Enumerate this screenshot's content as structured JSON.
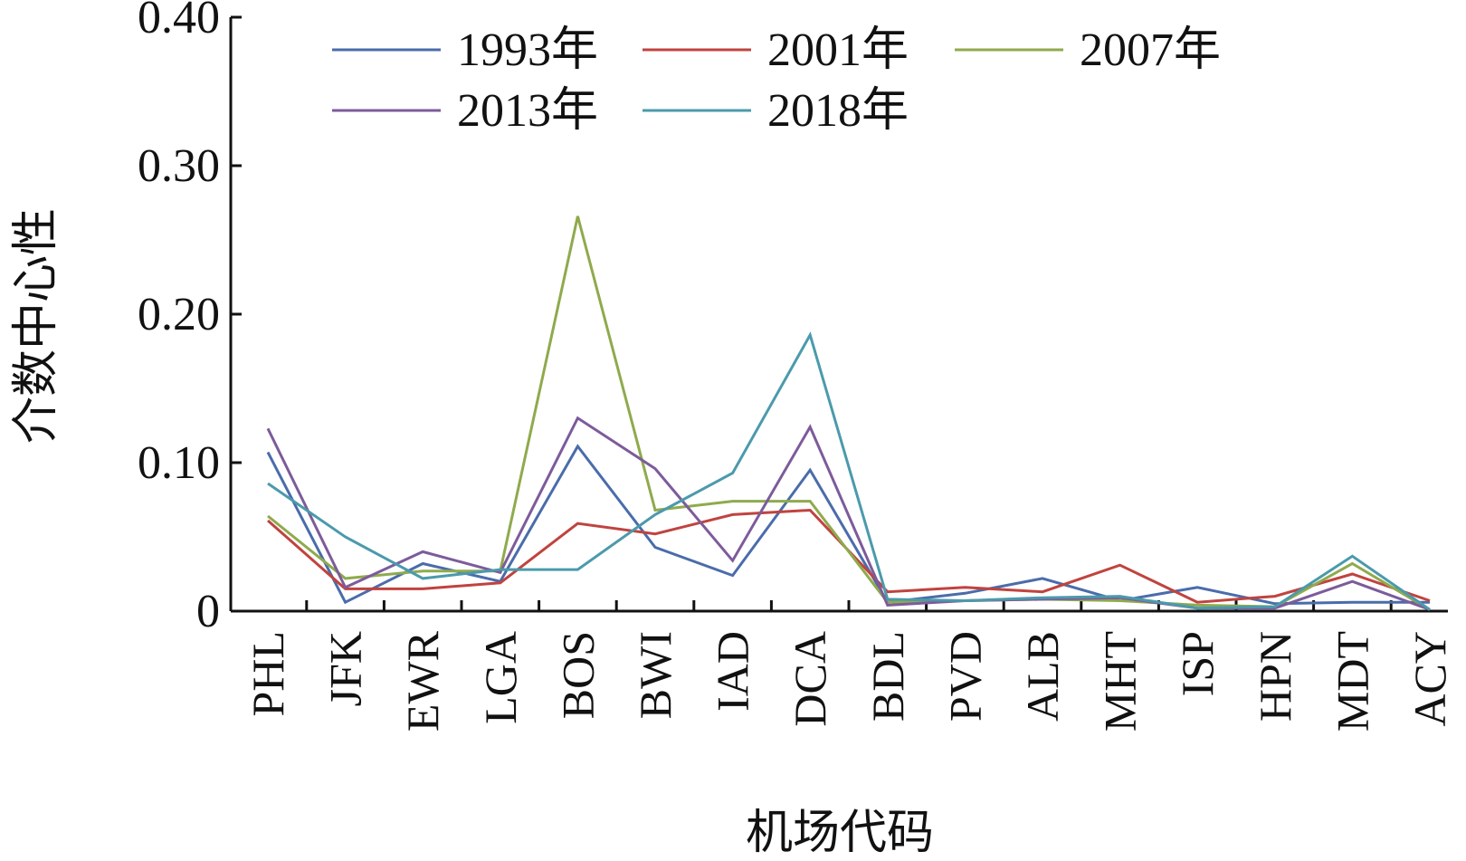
{
  "chart_data": {
    "type": "line",
    "xlabel": "机场代码",
    "ylabel": "介数中心性",
    "ylim": [
      0,
      0.4
    ],
    "yticks": [
      {
        "value": 0,
        "label": "0"
      },
      {
        "value": 0.1,
        "label": "0.10"
      },
      {
        "value": 0.2,
        "label": "0.20"
      },
      {
        "value": 0.3,
        "label": "0.30"
      },
      {
        "value": 0.4,
        "label": "0.40"
      }
    ],
    "categories": [
      "PHL",
      "JFK",
      "EWR",
      "LGA",
      "BOS",
      "BWI",
      "IAD",
      "DCA",
      "BDL",
      "PVD",
      "ALB",
      "MHT",
      "ISP",
      "HPN",
      "MDT",
      "ACY"
    ],
    "grid": false,
    "legend_position": "top",
    "series": [
      {
        "name": "1993年",
        "color": "#4a6cab",
        "values": [
          0.107,
          0.006,
          0.032,
          0.02,
          0.111,
          0.043,
          0.024,
          0.095,
          0.006,
          0.012,
          0.022,
          0.007,
          0.016,
          0.005,
          0.006,
          0.006
        ]
      },
      {
        "name": "2001年",
        "color": "#c0433f",
        "values": [
          0.061,
          0.015,
          0.015,
          0.019,
          0.059,
          0.052,
          0.065,
          0.068,
          0.013,
          0.016,
          0.013,
          0.031,
          0.006,
          0.01,
          0.025,
          0.007
        ]
      },
      {
        "name": "2007年",
        "color": "#8faa4d",
        "values": [
          0.064,
          0.022,
          0.027,
          0.027,
          0.266,
          0.068,
          0.074,
          0.074,
          0.006,
          0.007,
          0.008,
          0.007,
          0.004,
          0.003,
          0.032,
          0.001
        ]
      },
      {
        "name": "2013年",
        "color": "#7d5b9b",
        "values": [
          0.123,
          0.016,
          0.04,
          0.026,
          0.13,
          0.096,
          0.034,
          0.124,
          0.004,
          0.007,
          0.008,
          0.009,
          0.002,
          0.002,
          0.02,
          0.001
        ]
      },
      {
        "name": "2018年",
        "color": "#4b9aac",
        "values": [
          0.086,
          0.05,
          0.022,
          0.028,
          0.028,
          0.065,
          0.093,
          0.186,
          0.008,
          0.007,
          0.009,
          0.01,
          0.002,
          0.003,
          0.037,
          0.001
        ]
      }
    ]
  }
}
